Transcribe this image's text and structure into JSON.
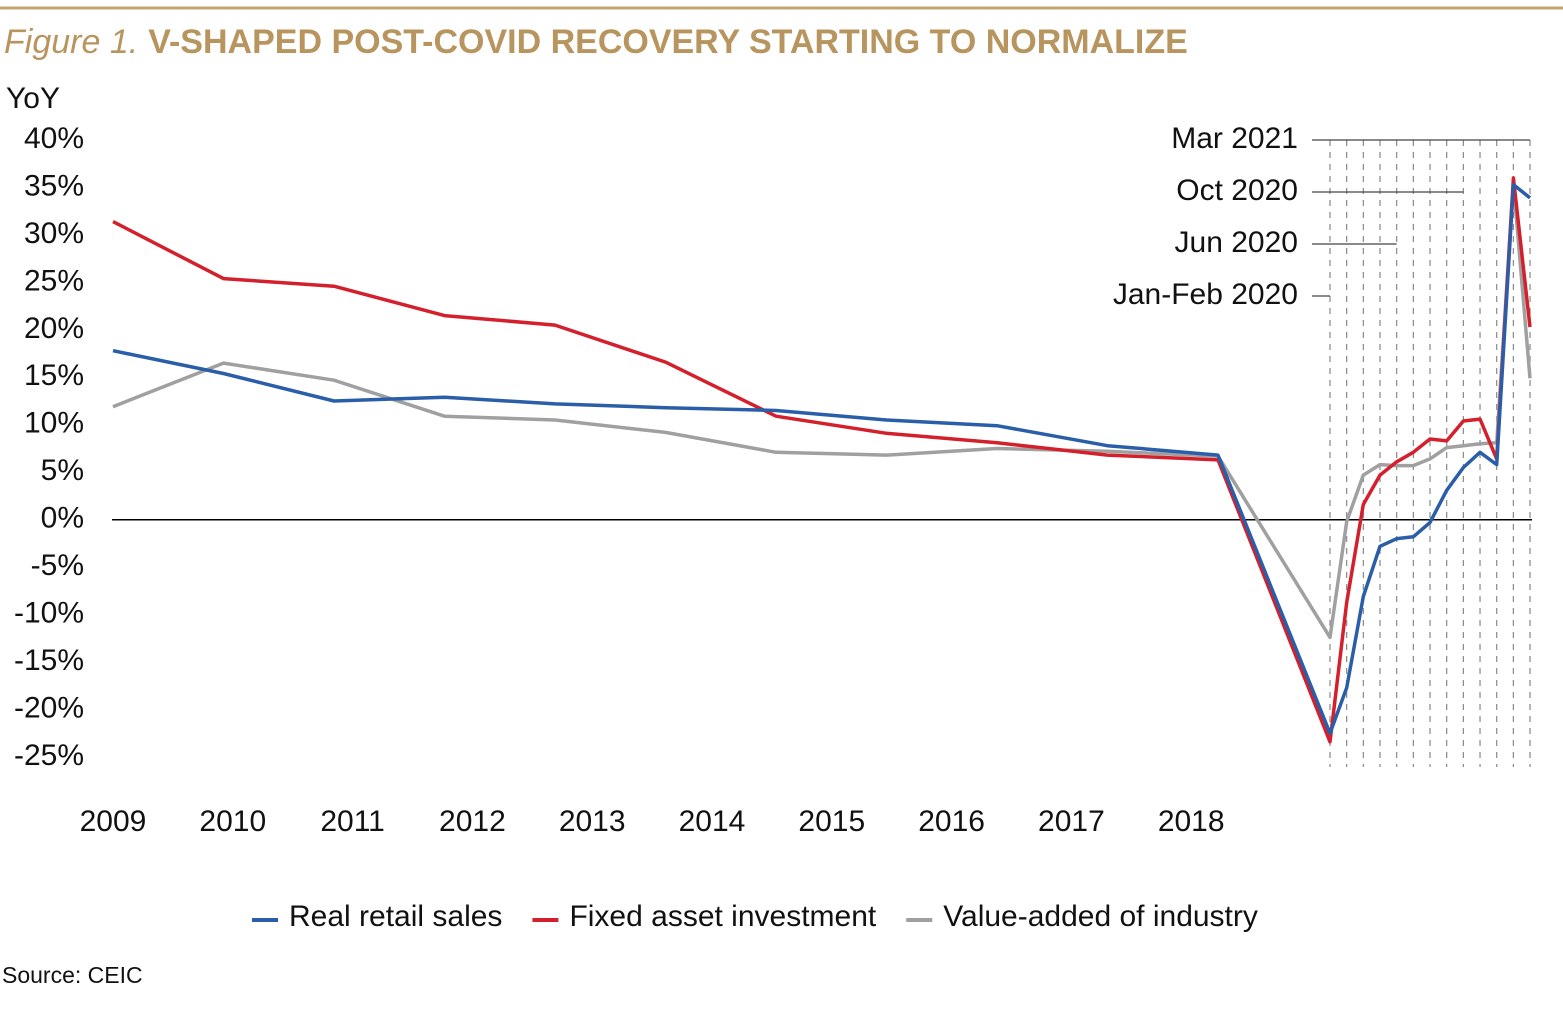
{
  "chart_data": {
    "type": "line",
    "figure_label": "Figure 1.",
    "title": "V-SHAPED POST-COVID RECOVERY STARTING TO NORMALIZE",
    "y_label": "YoY",
    "source": "Source: CEIC",
    "categories": [
      "2009",
      "2010",
      "2011",
      "2012",
      "2013",
      "2014",
      "2015",
      "2016",
      "2017",
      "2018",
      null,
      "Jan-Feb 2020",
      null,
      null,
      null,
      "Jun 2020",
      null,
      null,
      null,
      "Oct 2020",
      null,
      null,
      null,
      "Mar 2021"
    ],
    "series": [
      {
        "name": "Real retail sales",
        "color": "#2a5ea8",
        "values": [
          17.8,
          15.4,
          12.5,
          12.9,
          12.2,
          11.8,
          11.5,
          10.5,
          9.9,
          7.8,
          6.8,
          -22.5,
          -17.7,
          -8.1,
          -2.8,
          -2.0,
          -1.8,
          -0.3,
          3.1,
          5.5,
          7.1,
          5.8,
          35.3,
          33.9
        ]
      },
      {
        "name": "Fixed asset investment",
        "color": "#d4202c",
        "values": [
          31.4,
          25.4,
          24.6,
          21.5,
          20.5,
          16.6,
          10.9,
          9.1,
          8.1,
          6.8,
          6.3,
          -23.4,
          -8.7,
          1.6,
          4.7,
          6.1,
          7.1,
          8.5,
          8.3,
          10.4,
          10.6,
          6.4,
          36.0,
          20.3
        ]
      },
      {
        "name": "Value-added of industry",
        "color": "#a0a0a0",
        "values": [
          11.9,
          16.5,
          14.7,
          10.9,
          10.5,
          9.2,
          7.1,
          6.8,
          7.5,
          7.2,
          6.7,
          -12.4,
          -0.2,
          4.7,
          5.8,
          5.7,
          5.7,
          6.4,
          7.6,
          7.8,
          8.0,
          8.1,
          35.5,
          14.9
        ]
      }
    ],
    "ylim": [
      -25,
      40
    ],
    "yticks": [
      {
        "value": 40,
        "label": "40%"
      },
      {
        "value": 35,
        "label": "35%"
      },
      {
        "value": 30,
        "label": "30%"
      },
      {
        "value": 25,
        "label": "25%"
      },
      {
        "value": 20,
        "label": "20%"
      },
      {
        "value": 15,
        "label": "15%"
      },
      {
        "value": 10,
        "label": "10%"
      },
      {
        "value": 5,
        "label": "5%"
      },
      {
        "value": 0,
        "label": "0%"
      },
      {
        "value": -5,
        "label": "-5%"
      },
      {
        "value": -10,
        "label": "-10%"
      },
      {
        "value": -15,
        "label": "-15%"
      },
      {
        "value": -20,
        "label": "-20%"
      },
      {
        "value": -25,
        "label": "-25%"
      }
    ],
    "legend": "bottom"
  }
}
